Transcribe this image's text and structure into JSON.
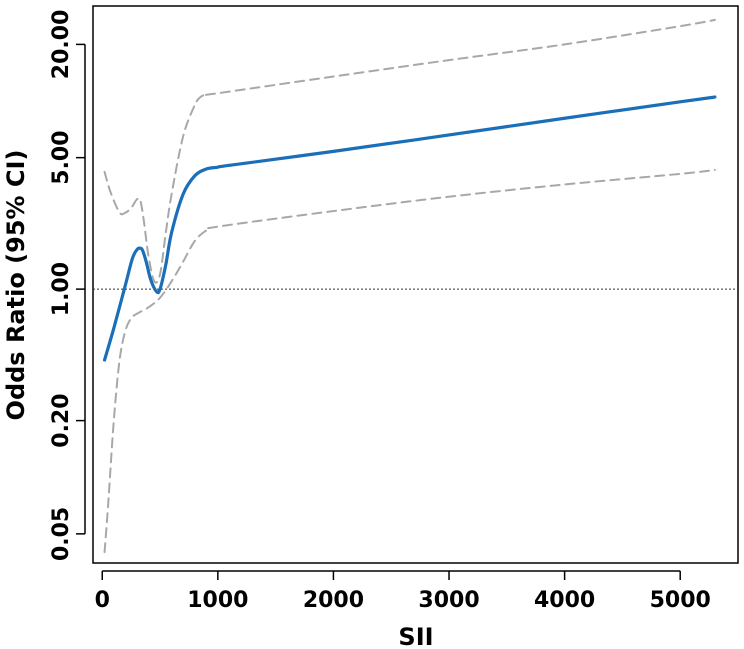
{
  "chart_data": {
    "type": "line",
    "xlabel": "SII",
    "ylabel": "Odds Ratio (95% CI)",
    "xlim": [
      -80,
      5500
    ],
    "ylim": [
      0.035,
      32
    ],
    "y_scale": "log",
    "x_ticks": [
      0,
      1000,
      2000,
      3000,
      4000,
      5000
    ],
    "x_tick_labels": [
      "0",
      "1000",
      "2000",
      "3000",
      "4000",
      "5000"
    ],
    "y_ticks": [
      0.05,
      0.2,
      1,
      5,
      20
    ],
    "y_tick_labels": [
      "0.05",
      "0.20",
      "1.00",
      "5.00",
      "20.00"
    ],
    "reference_line": 1,
    "grid": false,
    "colors": {
      "estimate": "#1a6fb8",
      "ci": "#a8a8a8",
      "reference": "#333333"
    },
    "series": [
      {
        "role": "estimate",
        "style": "solid",
        "x": [
          20,
          100,
          200,
          260,
          300,
          330,
          350,
          380,
          420,
          470,
          500,
          550,
          600,
          700,
          800,
          900,
          1000,
          1100,
          2000,
          3000,
          4000,
          5000,
          5300
        ],
        "y": [
          0.42,
          0.62,
          1.05,
          1.45,
          1.62,
          1.65,
          1.6,
          1.4,
          1.12,
          0.97,
          1.0,
          1.35,
          2.0,
          3.2,
          4.0,
          4.35,
          4.45,
          4.55,
          5.4,
          6.6,
          8.1,
          9.9,
          10.5
        ]
      },
      {
        "role": "ci-upper",
        "style": "dashed",
        "x": [
          20,
          70,
          150,
          200,
          250,
          300,
          330,
          360,
          400,
          450,
          500,
          550,
          600,
          700,
          800,
          850,
          900,
          1000,
          2000,
          3000,
          4000,
          5000,
          5300
        ],
        "y": [
          4.2,
          3.3,
          2.55,
          2.55,
          2.7,
          3.0,
          2.95,
          2.3,
          1.5,
          1.1,
          1.2,
          2.0,
          3.2,
          6.5,
          9.5,
          10.5,
          10.8,
          11.0,
          13.5,
          16.5,
          20.0,
          25.0,
          27.0
        ]
      },
      {
        "role": "ci-lower",
        "style": "dashed",
        "x": [
          20,
          50,
          100,
          150,
          200,
          250,
          300,
          400,
          500,
          600,
          700,
          800,
          900,
          1000,
          2000,
          3000,
          4000,
          5000,
          5300
        ],
        "y": [
          0.04,
          0.07,
          0.2,
          0.42,
          0.6,
          0.7,
          0.74,
          0.8,
          0.9,
          1.1,
          1.4,
          1.8,
          2.05,
          2.15,
          2.6,
          3.1,
          3.6,
          4.1,
          4.3
        ]
      }
    ]
  }
}
